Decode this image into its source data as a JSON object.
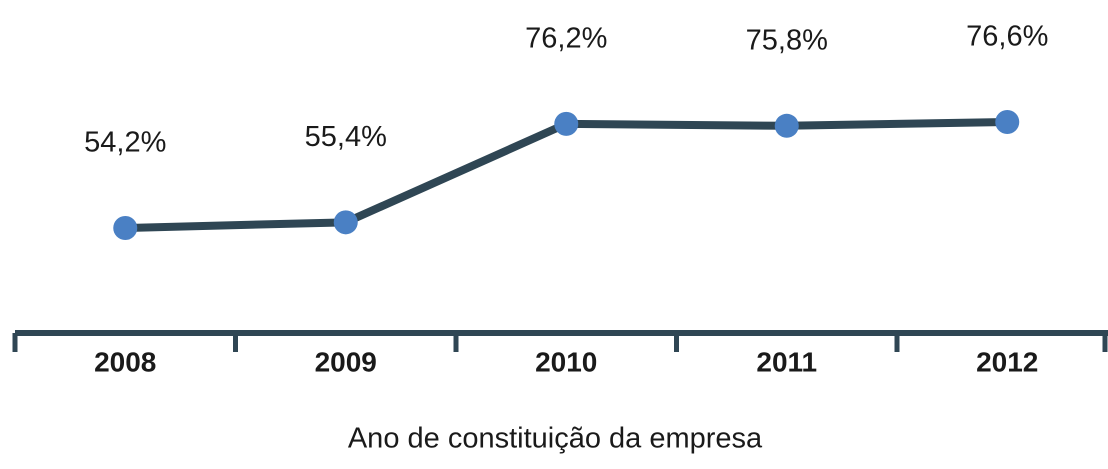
{
  "chart_data": {
    "type": "line",
    "x_label": "Ano de constituição da empresa",
    "categories": [
      "2008",
      "2009",
      "2010",
      "2011",
      "2012"
    ],
    "values": [
      54.2,
      55.4,
      76.2,
      75.8,
      76.6
    ],
    "value_labels": [
      "54,2%",
      "55,4%",
      "76,2%",
      "75,8%",
      "76,6%"
    ],
    "color": "#2f4654",
    "marker_color": "#4a80c4"
  }
}
